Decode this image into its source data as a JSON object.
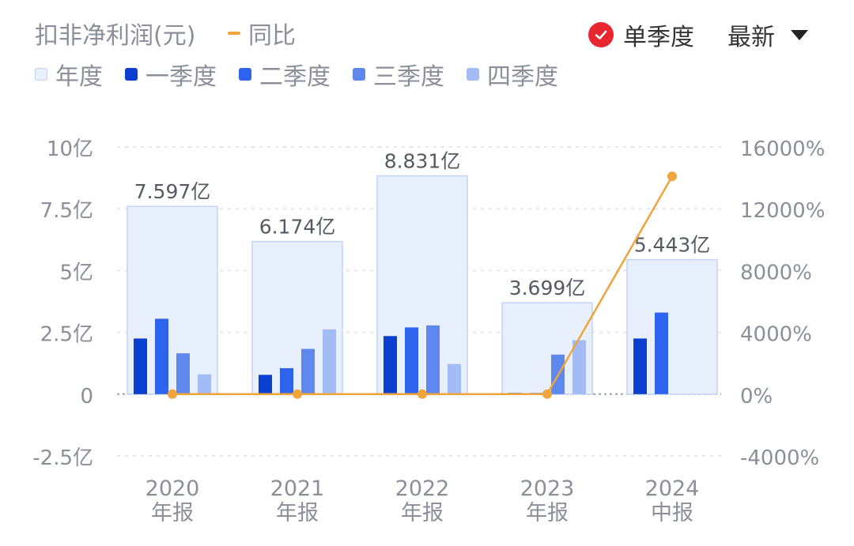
{
  "header": {
    "title": "扣非净利润(元)",
    "yoy_label": "同比",
    "single_quarter_label": "单季度",
    "latest_label": "最新"
  },
  "legend": [
    {
      "label": "年度",
      "color": "#e8effd"
    },
    {
      "label": "一季度",
      "color": "#0a3fd0"
    },
    {
      "label": "二季度",
      "color": "#2e63ee"
    },
    {
      "label": "三季度",
      "color": "#5f88ee"
    },
    {
      "label": "四季度",
      "color": "#a4bcf6"
    }
  ],
  "colors": {
    "annual_fill": "#e8effd",
    "annual_border": "#c3d3f3",
    "yoy_line": "#f0a43c",
    "axis_text": "#8a8f99",
    "check_red": "#e8262f"
  },
  "chart_data": {
    "type": "bar",
    "categories": [
      "2020",
      "2021",
      "2022",
      "2023",
      "2024"
    ],
    "category_sublabels": [
      "年报",
      "年报",
      "年报",
      "年报",
      "中报"
    ],
    "annual_labels": [
      "7.597亿",
      "6.174亿",
      "8.831亿",
      "3.699亿",
      "5.443亿"
    ],
    "series": [
      {
        "name": "年度",
        "values": [
          7.597,
          6.174,
          8.831,
          3.699,
          5.443
        ]
      },
      {
        "name": "一季度",
        "values": [
          2.25,
          0.78,
          2.35,
          0.05,
          2.25
        ]
      },
      {
        "name": "二季度",
        "values": [
          3.05,
          1.05,
          2.7,
          0.05,
          3.3
        ]
      },
      {
        "name": "三季度",
        "values": [
          1.65,
          1.83,
          2.78,
          1.6,
          null
        ]
      },
      {
        "name": "四季度",
        "values": [
          0.8,
          2.62,
          1.22,
          2.18,
          null
        ]
      }
    ],
    "yoy": {
      "name": "同比",
      "values": [
        0,
        0,
        0,
        0,
        14100
      ]
    },
    "y_left": {
      "min": -2.5,
      "max": 10,
      "ticks": [
        10,
        7.5,
        5,
        2.5,
        0,
        -2.5
      ],
      "tick_labels": [
        "10亿",
        "7.5亿",
        "5亿",
        "2.5亿",
        "0",
        "-2.5亿"
      ]
    },
    "y_right": {
      "min": -4000,
      "max": 16000,
      "ticks": [
        16000,
        12000,
        8000,
        4000,
        0,
        -4000
      ],
      "tick_labels": [
        "16000%",
        "12000%",
        "8000%",
        "4000%",
        "0%",
        "-4000%"
      ]
    },
    "grid": "dashed"
  }
}
